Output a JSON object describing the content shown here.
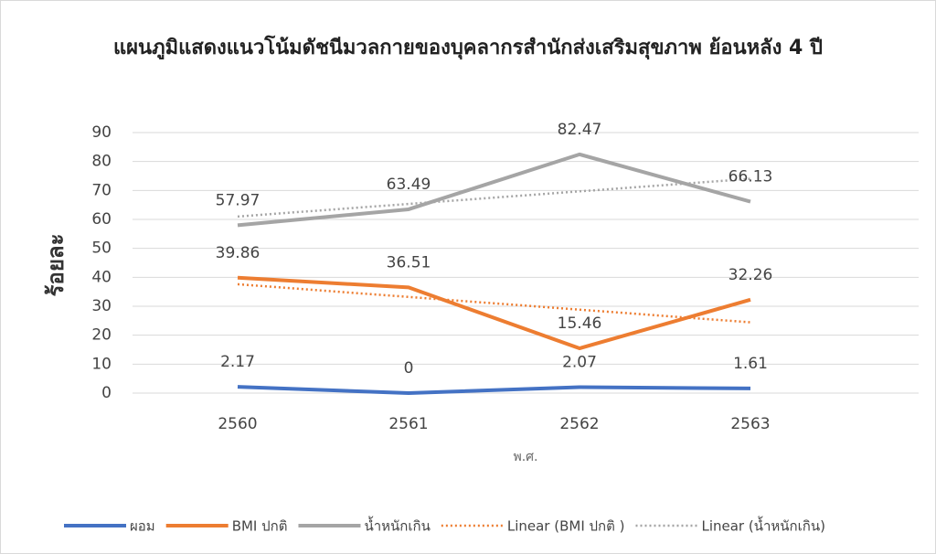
{
  "chart_data": {
    "type": "line",
    "title": "แผนภูมิแสดงแนวโน้มดัชนีมวลกายของบุคลากรสำนักส่งเสริมสุขภาพ ย้อนหลัง 4 ปี",
    "y_label": "ร้อยละ",
    "x_label": "พ.ศ.",
    "categories": [
      "2560",
      "2561",
      "2562",
      "2563"
    ],
    "ylim": [
      0,
      90
    ],
    "yticks": [
      0,
      10,
      20,
      30,
      40,
      50,
      60,
      70,
      80,
      90
    ],
    "grid": true,
    "legend": "bottom",
    "series": [
      {
        "name": "ผอม",
        "color": "#4472c4",
        "style": "solid",
        "values": [
          2.17,
          0,
          2.07,
          1.61
        ],
        "data_labels": true
      },
      {
        "name": "BMI ปกติ",
        "color": "#ed7d31",
        "style": "solid",
        "values": [
          39.86,
          36.51,
          15.46,
          32.26
        ],
        "data_labels": true
      },
      {
        "name": "น้ำหนักเกิน",
        "color": "#a5a5a5",
        "style": "solid",
        "values": [
          57.97,
          63.49,
          82.47,
          66.13
        ],
        "data_labels": true
      },
      {
        "name": "Linear (BMI ปกติ )",
        "color": "#ed7d31",
        "style": "dotted",
        "values": [
          37.6,
          33.21,
          28.83,
          24.45
        ],
        "data_labels": false
      },
      {
        "name": "Linear (น้ำหนักเกิน)",
        "color": "#a5a5a5",
        "style": "dotted",
        "values": [
          61.0,
          65.35,
          69.69,
          74.03
        ],
        "data_labels": false
      }
    ]
  }
}
